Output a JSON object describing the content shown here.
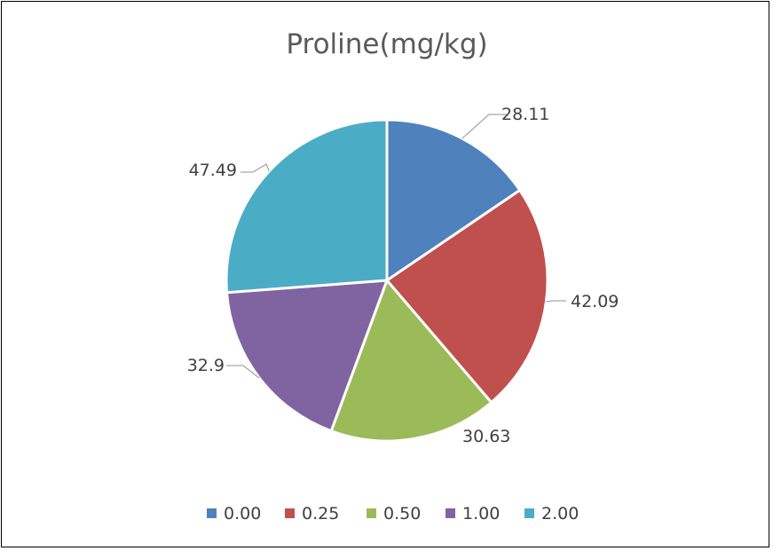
{
  "chart_data": {
    "type": "pie",
    "title": "Proline(mg/kg)",
    "categories": [
      "0.00",
      "0.25",
      "0.50",
      "1.00",
      "2.00"
    ],
    "values": [
      28.11,
      42.09,
      30.63,
      32.9,
      47.49
    ],
    "data_labels": [
      "28.11",
      "42.09",
      "30.63",
      "32.9",
      "47.49"
    ],
    "colors": [
      "#4f81bd",
      "#c0504d",
      "#9bbb59",
      "#8064a2",
      "#4bacc6"
    ],
    "start_angle_deg": 0,
    "direction": "clockwise",
    "legend": {
      "position": "bottom",
      "entries": [
        "0.00",
        "0.25",
        "0.50",
        "1.00",
        "2.00"
      ]
    }
  }
}
